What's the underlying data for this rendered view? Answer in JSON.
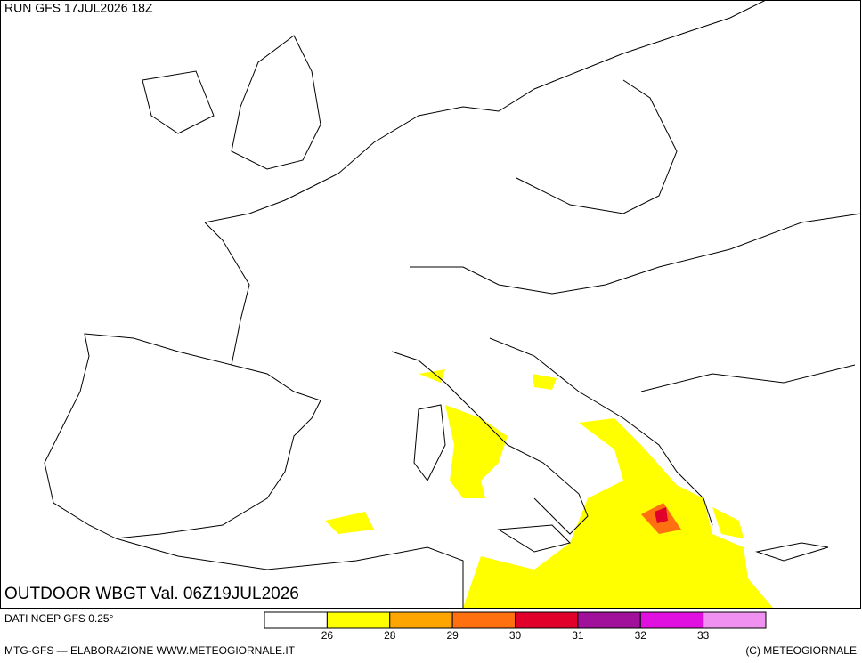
{
  "header": {
    "run": "RUN GFS 17JUL2026 18Z"
  },
  "map": {
    "title": "OUTDOOR WBGT Val. 06Z19JUL2026"
  },
  "legend": {
    "colors": [
      "#ffffff",
      "#ffff00",
      "#ffa500",
      "#ff7010",
      "#e0002a",
      "#a0109a",
      "#e010e0",
      "#f090f0"
    ],
    "labels": [
      26,
      28,
      29,
      30,
      31,
      32,
      33
    ]
  },
  "footer": {
    "source": "DATI NCEP GFS 0.25°",
    "credit": "MTG-GFS — ELABORAZIONE WWW.METEOGIORNALE.IT",
    "copyright": "(C) METEOGIORNALE"
  }
}
